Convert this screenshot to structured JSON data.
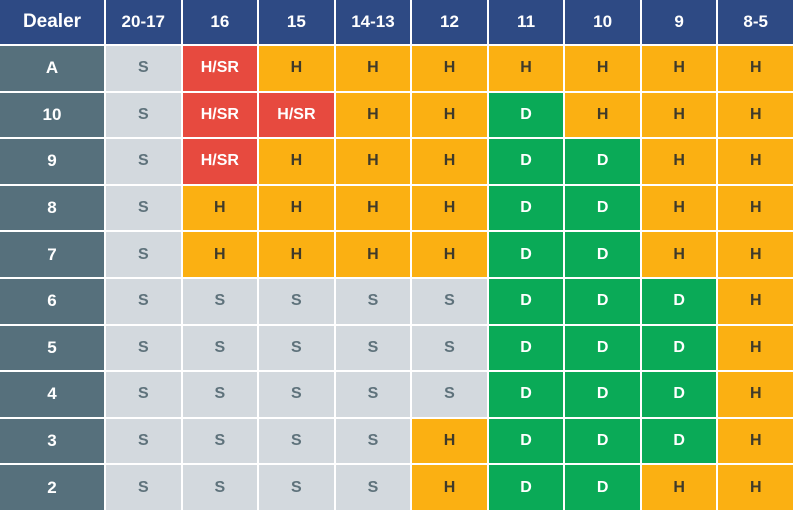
{
  "corner_label": "Dealer",
  "columns": [
    "20-17",
    "16",
    "15",
    "14-13",
    "12",
    "11",
    "10",
    "9",
    "8-5"
  ],
  "rows": [
    {
      "dealer": "A",
      "cells": [
        "S",
        "H/SR",
        "H",
        "H",
        "H",
        "H",
        "H",
        "H",
        "H"
      ]
    },
    {
      "dealer": "10",
      "cells": [
        "S",
        "H/SR",
        "H/SR",
        "H",
        "H",
        "D",
        "H",
        "H",
        "H"
      ]
    },
    {
      "dealer": "9",
      "cells": [
        "S",
        "H/SR",
        "H",
        "H",
        "H",
        "D",
        "D",
        "H",
        "H"
      ]
    },
    {
      "dealer": "8",
      "cells": [
        "S",
        "H",
        "H",
        "H",
        "H",
        "D",
        "D",
        "H",
        "H"
      ]
    },
    {
      "dealer": "7",
      "cells": [
        "S",
        "H",
        "H",
        "H",
        "H",
        "D",
        "D",
        "H",
        "H"
      ]
    },
    {
      "dealer": "6",
      "cells": [
        "S",
        "S",
        "S",
        "S",
        "S",
        "D",
        "D",
        "D",
        "H"
      ]
    },
    {
      "dealer": "5",
      "cells": [
        "S",
        "S",
        "S",
        "S",
        "S",
        "D",
        "D",
        "D",
        "H"
      ]
    },
    {
      "dealer": "4",
      "cells": [
        "S",
        "S",
        "S",
        "S",
        "S",
        "D",
        "D",
        "D",
        "H"
      ]
    },
    {
      "dealer": "3",
      "cells": [
        "S",
        "S",
        "S",
        "S",
        "H",
        "D",
        "D",
        "D",
        "H"
      ]
    },
    {
      "dealer": "2",
      "cells": [
        "S",
        "S",
        "S",
        "S",
        "H",
        "D",
        "D",
        "H",
        "H"
      ]
    }
  ],
  "colors": {
    "header": "#2e4a84",
    "row_label": "#56707c",
    "S": "#d3d9de",
    "H": "#fbb012",
    "D": "#0aaa57",
    "H/SR": "#e74a3f"
  }
}
